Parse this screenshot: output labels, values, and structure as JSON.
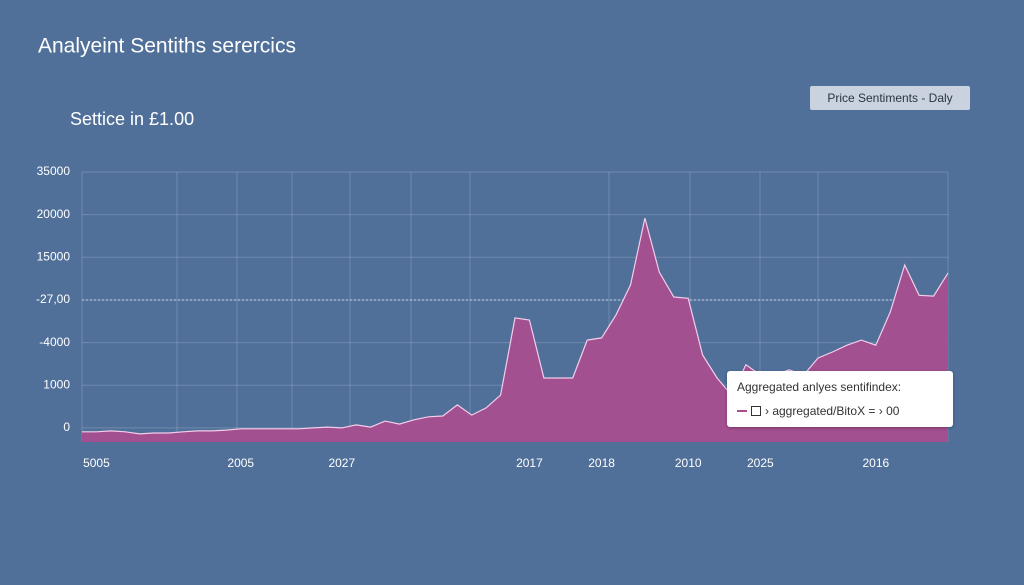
{
  "chart_data": {
    "type": "area",
    "title": "Analyeint Sentiths serercics",
    "subtitle": "Settice in £1.00",
    "legend": "Price  Sentiments  - Daly",
    "tooltip": {
      "title": "Aggregated anlyes sentifindex:",
      "text": "› aggregated/BitoX = › 00"
    },
    "categories": [
      null,
      "5005",
      null,
      null,
      null,
      null,
      null,
      null,
      null,
      null,
      null,
      "2005",
      null,
      null,
      null,
      null,
      null,
      null,
      "2027",
      null,
      null,
      null,
      null,
      null,
      null,
      null,
      null,
      null,
      null,
      null,
      null,
      "2017",
      null,
      null,
      null,
      null,
      "2018",
      null,
      null,
      null,
      null,
      null,
      "2010",
      null,
      null,
      null,
      null,
      "2025",
      null,
      null,
      null,
      null,
      null,
      null,
      null,
      "2016",
      null,
      null,
      null,
      null,
      null
    ],
    "series": [
      {
        "name": "Price  Sentiments",
        "color": "#a84e8f",
        "values": [
          -0.09,
          -0.09,
          -0.07,
          -0.09,
          -0.14,
          -0.12,
          -0.12,
          -0.09,
          -0.07,
          -0.07,
          -0.05,
          -0.02,
          -0.02,
          -0.02,
          -0.02,
          -0.02,
          0,
          0.02,
          0,
          0.07,
          0.02,
          0.16,
          0.09,
          0.19,
          0.26,
          0.28,
          0.54,
          0.3,
          0.47,
          0.77,
          2.58,
          2.53,
          1.17,
          1.17,
          1.17,
          2.06,
          2.11,
          2.65,
          3.35,
          4.92,
          3.65,
          3.07,
          3.04,
          1.71,
          1.17,
          0.77,
          1.48,
          1.24,
          1.24,
          1.36,
          1.24,
          1.64,
          1.78,
          1.94,
          2.06,
          1.94,
          2.72,
          3.82,
          3.11,
          3.09,
          3.63
        ]
      }
    ],
    "ylim": [
      -0.33,
      6
    ],
    "yticks": [
      0,
      1,
      2,
      3,
      4,
      5,
      6
    ],
    "y_axis_labels": [
      "0",
      "1000",
      "-4000",
      "-27,00",
      "15000",
      "20000",
      "35000"
    ],
    "reference_line": 3,
    "grid": true
  }
}
